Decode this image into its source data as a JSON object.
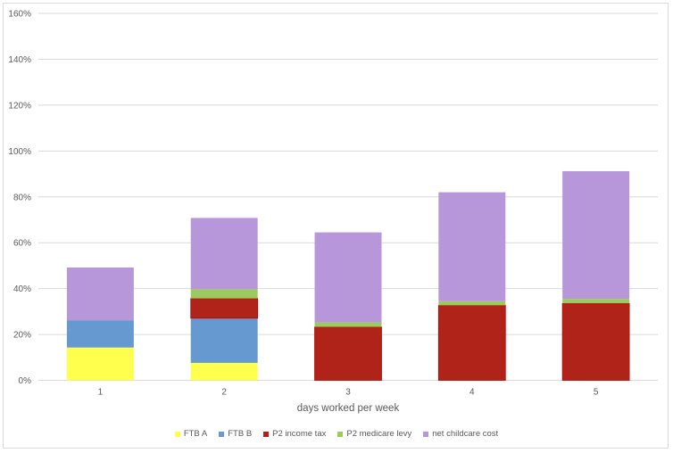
{
  "chart_data": {
    "type": "bar",
    "stacked": true,
    "title": "",
    "xlabel": "days worked per week",
    "ylabel": "",
    "ylim": [
      0,
      160
    ],
    "y_ticks": [
      0,
      20,
      40,
      60,
      80,
      100,
      120,
      140,
      160
    ],
    "y_tick_labels": [
      "0%",
      "20%",
      "40%",
      "60%",
      "80%",
      "100%",
      "120%",
      "140%",
      "160%"
    ],
    "categories": [
      "1",
      "2",
      "3",
      "4",
      "5"
    ],
    "grid": true,
    "legend_position": "bottom",
    "series": [
      {
        "name": "FTB A",
        "color": "#FFFF4D",
        "values": [
          14.3,
          7.6,
          0,
          0,
          0
        ]
      },
      {
        "name": "FTB B",
        "color": "#6699CF",
        "values": [
          11.9,
          19.5,
          0,
          0,
          0
        ]
      },
      {
        "name": "P2 income tax",
        "color": "#B02318",
        "border": "#C00000",
        "values": [
          0,
          8.6,
          23.3,
          32.7,
          33.6
        ]
      },
      {
        "name": "P2 medicare levy",
        "color": "#9DCA5E",
        "values": [
          0,
          4.0,
          2.0,
          1.8,
          1.9
        ]
      },
      {
        "name": "net childcare cost",
        "color": "#B896DA",
        "values": [
          23.0,
          31.1,
          39.2,
          47.5,
          55.7
        ]
      }
    ]
  }
}
